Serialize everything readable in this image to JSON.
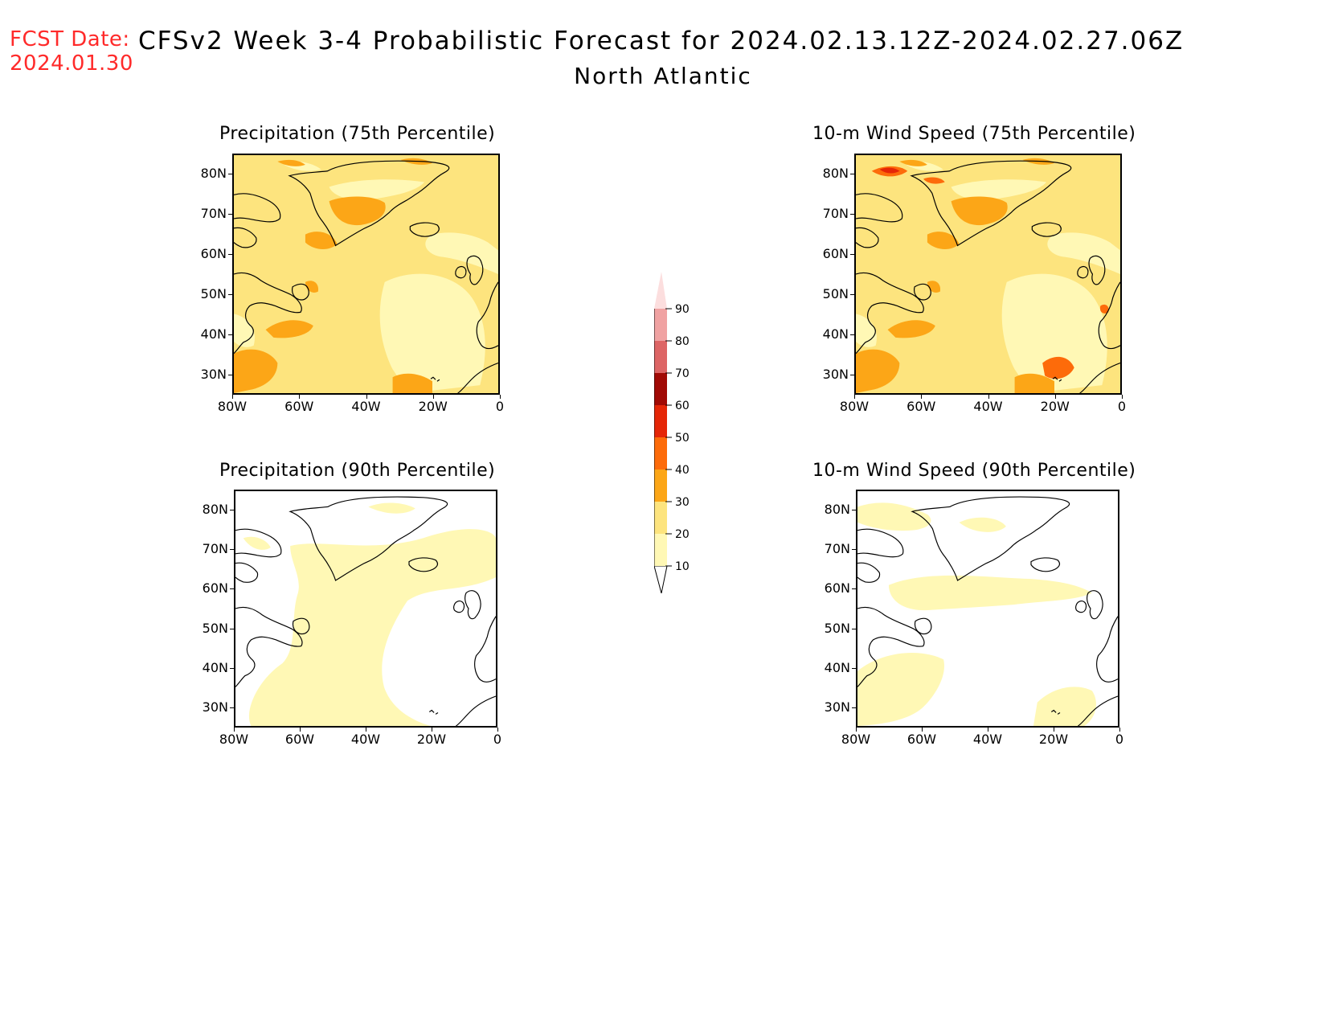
{
  "header": {
    "fcst_date_label": "FCST Date:",
    "fcst_date_value": "2024.01.30",
    "title": "CFSv2 Week 3-4 Probabilistic Forecast for 2024.02.13.12Z-2024.02.27.06Z",
    "subtitle": "North Atlantic"
  },
  "axes": {
    "lat_labels": [
      "80N",
      "70N",
      "60N",
      "50N",
      "40N",
      "30N"
    ],
    "lon_labels": [
      "80W",
      "60W",
      "40W",
      "20W",
      "0"
    ]
  },
  "panels": [
    {
      "id": "precip75",
      "title": "Precipitation (75th Percentile)",
      "coverage": "high"
    },
    {
      "id": "wind75",
      "title": "10-m Wind Speed (75th Percentile)",
      "coverage": "high"
    },
    {
      "id": "precip90",
      "title": "Precipitation (90th Percentile)",
      "coverage": "low"
    },
    {
      "id": "wind90",
      "title": "10-m Wind Speed (90th Percentile)",
      "coverage": "low"
    }
  ],
  "colorbar": {
    "levels": [
      "10",
      "20",
      "30",
      "40",
      "50",
      "60",
      "70",
      "80",
      "90"
    ],
    "colors": [
      "#fff8b5",
      "#fde47e",
      "#fca617",
      "#fd6b0a",
      "#e52607",
      "#a10a05",
      "#dd6565",
      "#f0a2a2",
      "#fcdede"
    ]
  },
  "colors": {
    "white_area": "#ffffff",
    "light": "#fff8b5",
    "mid": "#fde47e",
    "orange": "#fca617",
    "deep": "#fd6b0a",
    "red": "#e52607",
    "fcst_text": "#ff2a2a"
  }
}
